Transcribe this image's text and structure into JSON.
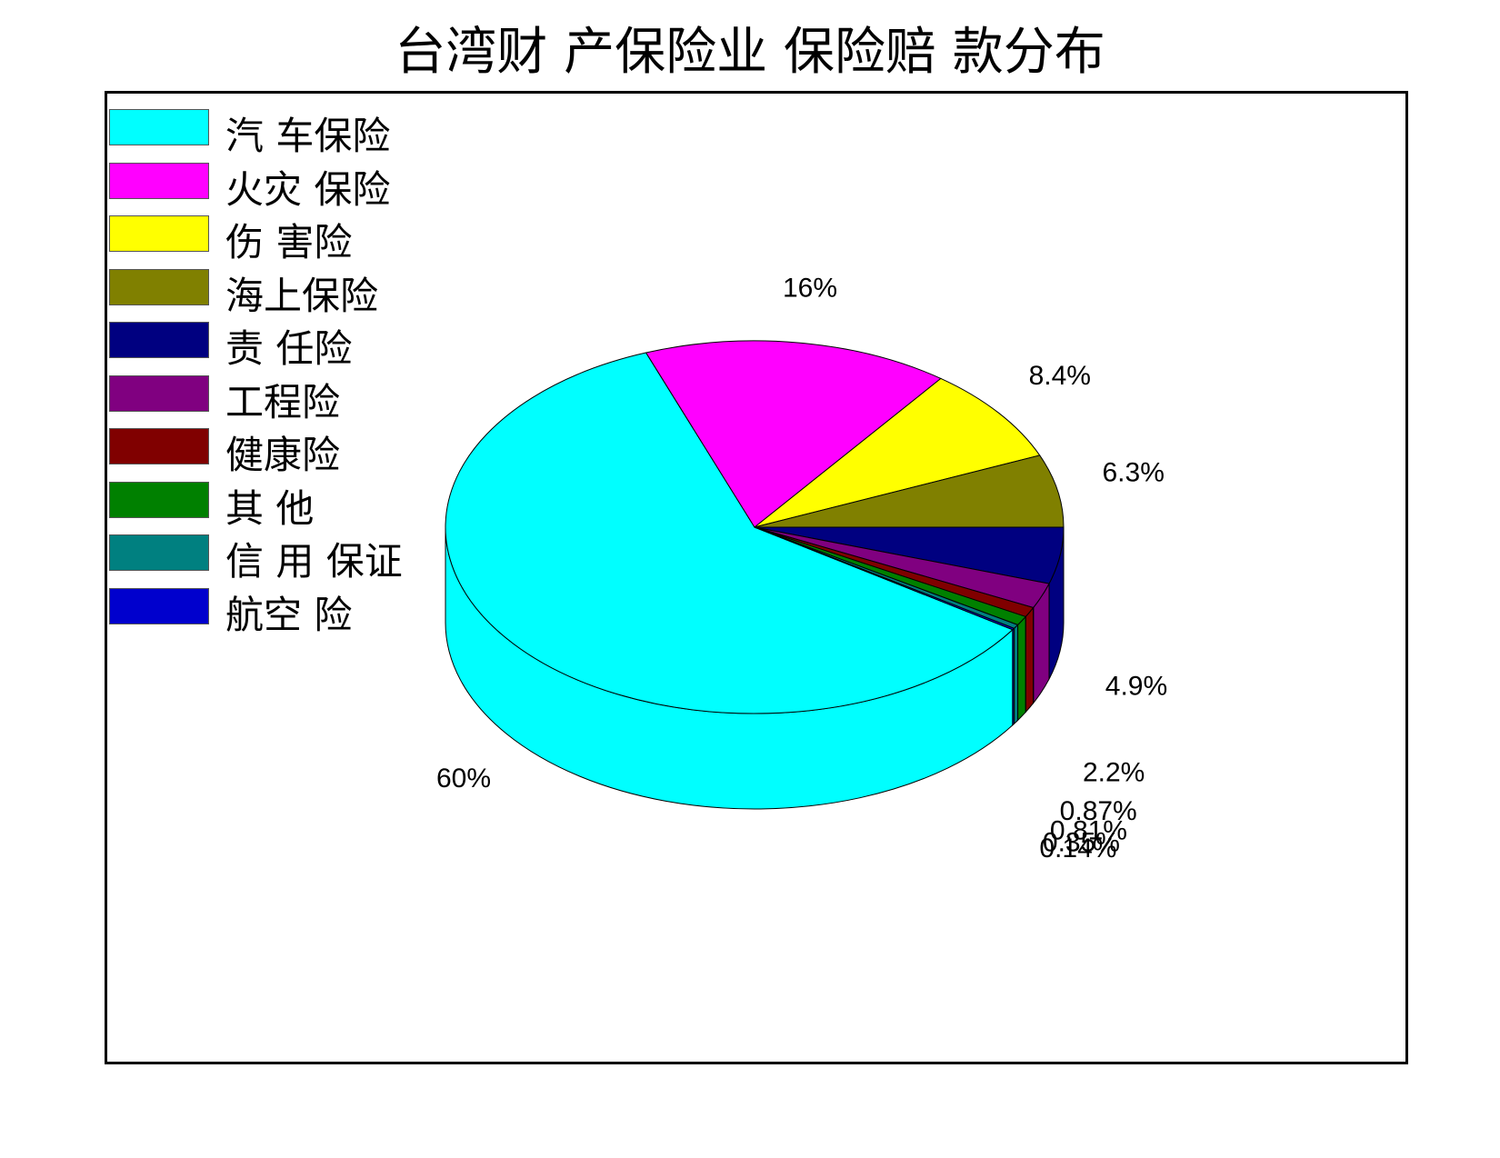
{
  "chart_data": {
    "type": "pie",
    "title": "台湾财 产保险业 保险赔 款分布",
    "legend_position": "top-left",
    "three_d": true,
    "slices": [
      {
        "name": "汽  车保险",
        "value": 60,
        "label": "60%",
        "color": "#00FFFF"
      },
      {
        "name": "火灾  保险",
        "value": 16,
        "label": "16%",
        "color": "#FF00FF"
      },
      {
        "name": "伤 害险",
        "value": 8.4,
        "label": "8.4%",
        "color": "#FFFF00"
      },
      {
        "name": "海上保险",
        "value": 6.3,
        "label": "6.3%",
        "color": "#808000"
      },
      {
        "name": "责 任险",
        "value": 4.9,
        "label": "4.9%",
        "color": "#000080"
      },
      {
        "name": "工程险",
        "value": 2.2,
        "label": "2.2%",
        "color": "#800080"
      },
      {
        "name": "健康险",
        "value": 0.87,
        "label": "0.87%",
        "color": "#800000"
      },
      {
        "name": "其  他",
        "value": 0.81,
        "label": "0.81%",
        "color": "#008000"
      },
      {
        "name": "信 用  保证",
        "value": 0.35,
        "label": "0.35%",
        "color": "#008080"
      },
      {
        "name": "航空 险",
        "value": 0.14,
        "label": "0.14%",
        "color": "#0000CD"
      }
    ]
  }
}
